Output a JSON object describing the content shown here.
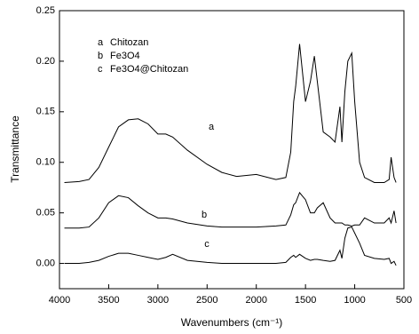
{
  "chart_data": {
    "type": "line",
    "xlabel": "Wavenumbers (cm⁻¹)",
    "ylabel": "Transmittance",
    "x": [
      3950,
      3800,
      3700,
      3600,
      3500,
      3400,
      3300,
      3200,
      3100,
      3000,
      2920,
      2850,
      2700,
      2500,
      2350,
      2200,
      2000,
      1800,
      1700,
      1650,
      1620,
      1600,
      1560,
      1500,
      1450,
      1410,
      1380,
      1320,
      1250,
      1200,
      1150,
      1130,
      1100,
      1070,
      1030,
      1000,
      950,
      900,
      800,
      700,
      650,
      630,
      600,
      580
    ],
    "series": [
      {
        "label": "a",
        "name": "Chitozan",
        "color": "#000000",
        "values": [
          0.08,
          0.081,
          0.083,
          0.095,
          0.115,
          0.135,
          0.142,
          0.143,
          0.138,
          0.128,
          0.128,
          0.125,
          0.112,
          0.098,
          0.09,
          0.086,
          0.088,
          0.083,
          0.085,
          0.11,
          0.16,
          0.175,
          0.217,
          0.16,
          0.18,
          0.205,
          0.18,
          0.13,
          0.125,
          0.12,
          0.155,
          0.12,
          0.17,
          0.2,
          0.208,
          0.16,
          0.1,
          0.085,
          0.08,
          0.08,
          0.083,
          0.105,
          0.085,
          0.08
        ]
      },
      {
        "label": "b",
        "name": "Fe3O4",
        "color": "#000000",
        "values": [
          0.035,
          0.035,
          0.036,
          0.045,
          0.06,
          0.067,
          0.065,
          0.057,
          0.05,
          0.045,
          0.045,
          0.044,
          0.04,
          0.037,
          0.036,
          0.036,
          0.036,
          0.037,
          0.038,
          0.048,
          0.058,
          0.06,
          0.07,
          0.063,
          0.05,
          0.05,
          0.055,
          0.06,
          0.045,
          0.04,
          0.04,
          0.04,
          0.038,
          0.038,
          0.037,
          0.038,
          0.038,
          0.045,
          0.04,
          0.04,
          0.045,
          0.04,
          0.052,
          0.04
        ]
      },
      {
        "label": "c",
        "name": "Fe3O4@Chitozan",
        "color": "#000000",
        "values": [
          0.0,
          0.0,
          0.001,
          0.003,
          0.007,
          0.01,
          0.01,
          0.008,
          0.006,
          0.004,
          0.006,
          0.009,
          0.003,
          0.001,
          0.0,
          0.0,
          0.0,
          0.0,
          0.001,
          0.006,
          0.008,
          0.006,
          0.009,
          0.005,
          0.003,
          0.004,
          0.004,
          0.003,
          0.002,
          0.003,
          0.013,
          0.005,
          0.025,
          0.035,
          0.036,
          0.03,
          0.02,
          0.008,
          0.005,
          0.004,
          0.005,
          0.0,
          0.002,
          -0.002
        ]
      }
    ],
    "xlim": [
      4000,
      500
    ],
    "xticks": [
      4000,
      3500,
      3000,
      2500,
      2000,
      1500,
      1000,
      500
    ],
    "ylim": [
      -0.025,
      0.25
    ],
    "yticks": [
      {
        "value": 0,
        "label": "0.00"
      },
      0.05,
      {
        "value": 0.1,
        "label": "0.10"
      },
      0.15,
      {
        "value": 0.2,
        "label": "0.20"
      },
      0.25
    ],
    "grid": false
  }
}
